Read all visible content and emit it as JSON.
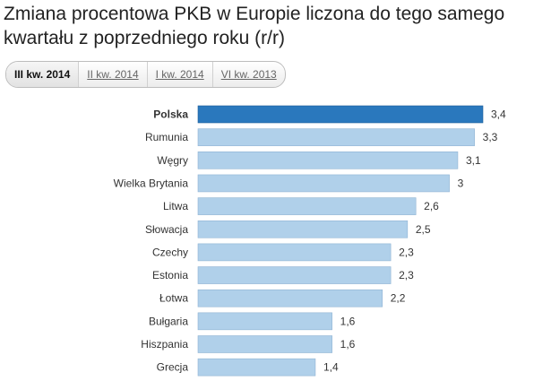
{
  "title": "Zmiana procentowa PKB w Europie liczona do tego samego kwartału z poprzedniego roku (r/r)",
  "tabs": [
    {
      "label": "III kw. 2014",
      "active": true
    },
    {
      "label": "II kw. 2014",
      "active": false
    },
    {
      "label": "I kw. 2014",
      "active": false
    },
    {
      "label": "VI kw. 2013",
      "active": false
    }
  ],
  "colors": {
    "highlight_bar": "#2a78bd",
    "bar": "#b0d0ea",
    "bar_border": "#8fb3d3",
    "highlight_border": "#1f5f98"
  },
  "chart_data": {
    "type": "bar",
    "orientation": "horizontal",
    "categories": [
      "Polska",
      "Rumunia",
      "Węgry",
      "Wielka Brytania",
      "Litwa",
      "Słowacja",
      "Czechy",
      "Estonia",
      "Łotwa",
      "Bułgaria",
      "Hiszpania",
      "Grecja"
    ],
    "values": [
      3.4,
      3.3,
      3.1,
      3,
      2.6,
      2.5,
      2.3,
      2.3,
      2.2,
      1.6,
      1.6,
      1.4
    ],
    "value_labels": [
      "3,4",
      "3,3",
      "3,1",
      "3",
      "2,6",
      "2,5",
      "2,3",
      "2,3",
      "2,2",
      "1,6",
      "1,6",
      "1,4"
    ],
    "highlight": "Polska",
    "xlim": [
      0,
      3.4
    ]
  }
}
